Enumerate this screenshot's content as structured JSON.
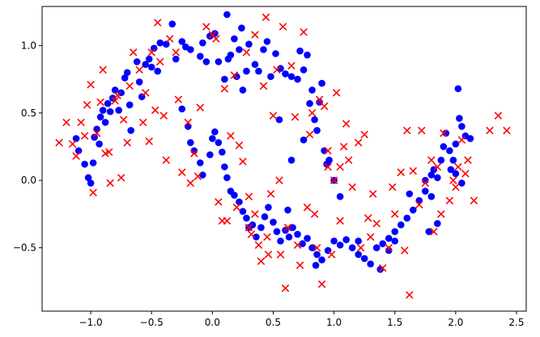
{
  "chart_data": {
    "type": "scatter",
    "title": "",
    "xlabel": "",
    "ylabel": "",
    "xlim": [
      -1.4,
      2.58
    ],
    "ylim": [
      -0.97,
      1.29
    ],
    "xticks": [
      -1.0,
      -0.5,
      0.0,
      0.5,
      1.0,
      1.5,
      2.0,
      2.5
    ],
    "xtick_labels": [
      "−1.0",
      "−0.5",
      "0.0",
      "0.5",
      "1.0",
      "1.5",
      "2.0",
      "2.5"
    ],
    "yticks": [
      -0.5,
      0.0,
      0.5,
      1.0
    ],
    "ytick_labels": [
      "−0.5",
      "0.0",
      "0.5",
      "1.0"
    ],
    "grid": false,
    "legend": "none",
    "series": [
      {
        "marker": "circle",
        "color": "#0000ff",
        "points": [
          [
            -1.12,
            0.31
          ],
          [
            -1.1,
            0.22
          ],
          [
            -1.05,
            0.12
          ],
          [
            -1.02,
            0.02
          ],
          [
            -1.0,
            -0.02
          ],
          [
            -0.98,
            0.13
          ],
          [
            -0.97,
            0.32
          ],
          [
            -0.95,
            0.38
          ],
          [
            -0.93,
            0.27
          ],
          [
            -0.92,
            0.47
          ],
          [
            -0.9,
            0.52
          ],
          [
            -0.88,
            0.43
          ],
          [
            -0.86,
            0.57
          ],
          [
            -0.84,
            0.51
          ],
          [
            -0.82,
            0.61
          ],
          [
            -0.8,
            0.67
          ],
          [
            -0.77,
            0.52
          ],
          [
            -0.75,
            0.65
          ],
          [
            -0.72,
            0.76
          ],
          [
            -0.7,
            0.8
          ],
          [
            -0.68,
            0.56
          ],
          [
            -0.67,
            0.37
          ],
          [
            -0.62,
            0.88
          ],
          [
            -0.6,
            0.73
          ],
          [
            -0.58,
            0.62
          ],
          [
            -0.55,
            0.86
          ],
          [
            -0.52,
            0.9
          ],
          [
            -0.5,
            0.84
          ],
          [
            -0.48,
            0.98
          ],
          [
            -0.45,
            0.81
          ],
          [
            -0.43,
            1.02
          ],
          [
            -0.38,
            1.01
          ],
          [
            -0.33,
            1.16
          ],
          [
            -0.3,
            0.9
          ],
          [
            -0.25,
            1.03
          ],
          [
            -0.22,
            0.99
          ],
          [
            -0.18,
            0.97
          ],
          [
            -0.1,
            0.92
          ],
          [
            -0.08,
            1.02
          ],
          [
            -0.05,
            0.88
          ],
          [
            -0.02,
            1.07
          ],
          [
            0.02,
            1.09
          ],
          [
            0.05,
            0.88
          ],
          [
            0.1,
            0.75
          ],
          [
            0.12,
            1.23
          ],
          [
            0.13,
            0.9
          ],
          [
            0.15,
            0.93
          ],
          [
            0.18,
            1.05
          ],
          [
            0.2,
            0.77
          ],
          [
            0.22,
            0.97
          ],
          [
            0.24,
            1.13
          ],
          [
            0.25,
            0.67
          ],
          [
            0.28,
            0.81
          ],
          [
            0.3,
            1.01
          ],
          [
            0.35,
            0.86
          ],
          [
            0.38,
            0.81
          ],
          [
            0.42,
            0.97
          ],
          [
            0.45,
            1.03
          ],
          [
            0.48,
            0.77
          ],
          [
            0.52,
            0.94
          ],
          [
            0.56,
            0.83
          ],
          [
            0.6,
            0.79
          ],
          [
            0.65,
            0.77
          ],
          [
            0.7,
            0.75
          ],
          [
            0.72,
            0.96
          ],
          [
            0.75,
            0.82
          ],
          [
            0.78,
            0.93
          ],
          [
            0.8,
            0.57
          ],
          [
            0.82,
            0.67
          ],
          [
            0.84,
            0.45
          ],
          [
            0.86,
            0.37
          ],
          [
            0.88,
            0.58
          ],
          [
            0.9,
            0.72
          ],
          [
            0.92,
            0.22
          ],
          [
            0.94,
            0.12
          ],
          [
            0.96,
            0.15
          ],
          [
            1.0,
            0.0
          ],
          [
            1.05,
            -0.12
          ],
          [
            -0.25,
            0.53
          ],
          [
            -0.2,
            0.4
          ],
          [
            -0.18,
            0.28
          ],
          [
            -0.15,
            0.22
          ],
          [
            -0.1,
            0.13
          ],
          [
            -0.08,
            0.04
          ],
          [
            -0.02,
            0.19
          ],
          [
            0.0,
            0.31
          ],
          [
            0.02,
            0.36
          ],
          [
            0.05,
            0.28
          ],
          [
            0.08,
            0.21
          ],
          [
            0.1,
            0.1
          ],
          [
            0.12,
            0.02
          ],
          [
            0.15,
            -0.08
          ],
          [
            0.18,
            -0.11
          ],
          [
            0.22,
            -0.16
          ],
          [
            0.25,
            -0.23
          ],
          [
            0.28,
            -0.28
          ],
          [
            0.3,
            -0.35
          ],
          [
            0.33,
            -0.33
          ],
          [
            0.36,
            -0.42
          ],
          [
            0.4,
            -0.35
          ],
          [
            0.43,
            -0.27
          ],
          [
            0.46,
            -0.2
          ],
          [
            0.5,
            -0.31
          ],
          [
            0.53,
            -0.38
          ],
          [
            0.56,
            -0.45
          ],
          [
            0.6,
            -0.37
          ],
          [
            0.63,
            -0.42
          ],
          [
            0.66,
            -0.35
          ],
          [
            0.7,
            -0.4
          ],
          [
            0.74,
            -0.47
          ],
          [
            0.78,
            -0.43
          ],
          [
            0.82,
            -0.5
          ],
          [
            0.86,
            -0.55
          ],
          [
            0.9,
            -0.59
          ],
          [
            0.95,
            -0.52
          ],
          [
            1.0,
            -0.45
          ],
          [
            1.05,
            -0.48
          ],
          [
            1.1,
            -0.44
          ],
          [
            1.15,
            -0.5
          ],
          [
            1.2,
            -0.55
          ],
          [
            1.25,
            -0.58
          ],
          [
            1.3,
            -0.62
          ],
          [
            1.35,
            -0.5
          ],
          [
            1.4,
            -0.47
          ],
          [
            1.45,
            -0.43
          ],
          [
            1.5,
            -0.38
          ],
          [
            1.55,
            -0.33
          ],
          [
            1.6,
            -0.28
          ],
          [
            1.62,
            -0.1
          ],
          [
            1.65,
            -0.22
          ],
          [
            1.7,
            -0.15
          ],
          [
            1.75,
            -0.08
          ],
          [
            1.78,
            -0.38
          ],
          [
            1.8,
            0.04
          ],
          [
            1.82,
            0.08
          ],
          [
            1.85,
            0.02
          ],
          [
            1.88,
            0.15
          ],
          [
            1.9,
            0.25
          ],
          [
            1.92,
            0.35
          ],
          [
            1.95,
            0.22
          ],
          [
            1.98,
            0.15
          ],
          [
            2.0,
            0.27
          ],
          [
            2.02,
            0.68
          ],
          [
            2.03,
            0.46
          ],
          [
            2.05,
            0.4
          ],
          [
            2.08,
            0.33
          ],
          [
            2.12,
            0.31
          ],
          [
            1.96,
            0.08
          ],
          [
            2.0,
            0.05
          ],
          [
            2.05,
            -0.02
          ],
          [
            1.85,
            -0.32
          ],
          [
            1.8,
            -0.12
          ],
          [
            1.75,
            0.0
          ],
          [
            1.5,
            -0.45
          ],
          [
            1.45,
            -0.52
          ],
          [
            1.38,
            -0.66
          ],
          [
            1.2,
            -0.45
          ],
          [
            0.85,
            -0.63
          ],
          [
            0.62,
            -0.22
          ],
          [
            0.65,
            0.15
          ],
          [
            0.75,
            0.3
          ],
          [
            0.55,
            0.45
          ]
        ]
      },
      {
        "marker": "x",
        "color": "#ff0000",
        "points": [
          [
            -1.26,
            0.28
          ],
          [
            -1.2,
            0.43
          ],
          [
            -1.15,
            0.27
          ],
          [
            -1.12,
            0.18
          ],
          [
            -1.08,
            0.43
          ],
          [
            -1.05,
            0.33
          ],
          [
            -1.03,
            0.56
          ],
          [
            -1.0,
            0.71
          ],
          [
            -0.98,
            -0.09
          ],
          [
            -0.95,
            0.35
          ],
          [
            -0.92,
            0.58
          ],
          [
            -0.9,
            0.82
          ],
          [
            -0.88,
            0.2
          ],
          [
            -0.85,
            0.21
          ],
          [
            -0.84,
            -0.02
          ],
          [
            -0.8,
            0.59
          ],
          [
            -0.78,
            0.63
          ],
          [
            -0.75,
            0.02
          ],
          [
            -0.73,
            0.45
          ],
          [
            -0.7,
            0.28
          ],
          [
            -0.68,
            0.7
          ],
          [
            -0.65,
            0.95
          ],
          [
            -0.6,
            0.82
          ],
          [
            -0.57,
            0.43
          ],
          [
            -0.55,
            0.65
          ],
          [
            -0.52,
            0.29
          ],
          [
            -0.5,
            0.95
          ],
          [
            -0.47,
            0.52
          ],
          [
            -0.45,
            1.17
          ],
          [
            -0.43,
            0.88
          ],
          [
            -0.4,
            0.48
          ],
          [
            -0.38,
            0.15
          ],
          [
            -0.35,
            1.05
          ],
          [
            -0.3,
            0.95
          ],
          [
            -0.28,
            0.6
          ],
          [
            -0.25,
            0.06
          ],
          [
            -0.2,
            0.43
          ],
          [
            -0.18,
            -0.02
          ],
          [
            -0.15,
            0.2
          ],
          [
            -0.12,
            0.03
          ],
          [
            -0.1,
            0.54
          ],
          [
            -0.05,
            1.14
          ],
          [
            0.0,
            1.08
          ],
          [
            0.03,
            1.05
          ],
          [
            0.05,
            -0.16
          ],
          [
            0.08,
            -0.3
          ],
          [
            0.1,
            0.68
          ],
          [
            0.12,
            -0.3
          ],
          [
            0.15,
            0.33
          ],
          [
            0.18,
            0.78
          ],
          [
            0.2,
            -0.2
          ],
          [
            0.22,
            0.26
          ],
          [
            0.25,
            0.14
          ],
          [
            0.28,
            0.95
          ],
          [
            0.3,
            -0.35
          ],
          [
            0.32,
            -0.4
          ],
          [
            0.35,
            1.08
          ],
          [
            0.38,
            -0.48
          ],
          [
            0.4,
            -0.6
          ],
          [
            0.42,
            0.7
          ],
          [
            0.44,
            1.21
          ],
          [
            0.46,
            -0.55
          ],
          [
            0.48,
            -0.1
          ],
          [
            0.5,
            0.48
          ],
          [
            0.53,
            0.82
          ],
          [
            0.56,
            -0.55
          ],
          [
            0.58,
            1.14
          ],
          [
            0.6,
            -0.8
          ],
          [
            0.62,
            -0.35
          ],
          [
            0.65,
            0.85
          ],
          [
            0.68,
            0.47
          ],
          [
            0.7,
            -0.48
          ],
          [
            0.72,
            -0.63
          ],
          [
            0.75,
            1.1
          ],
          [
            0.78,
            -0.2
          ],
          [
            0.8,
            0.34
          ],
          [
            0.82,
            0.5
          ],
          [
            0.84,
            -0.25
          ],
          [
            0.86,
            -0.5
          ],
          [
            0.88,
            0.6
          ],
          [
            0.9,
            -0.77
          ],
          [
            0.92,
            0.55
          ],
          [
            0.95,
            0.22
          ],
          [
            0.98,
            -0.55
          ],
          [
            1.0,
            0.0
          ],
          [
            1.02,
            0.65
          ],
          [
            1.05,
            -0.3
          ],
          [
            1.08,
            0.25
          ],
          [
            1.1,
            0.42
          ],
          [
            1.12,
            0.15
          ],
          [
            1.15,
            -0.05
          ],
          [
            1.2,
            0.28
          ],
          [
            1.22,
            -0.5
          ],
          [
            1.25,
            0.34
          ],
          [
            1.28,
            -0.28
          ],
          [
            1.3,
            -0.42
          ],
          [
            1.32,
            -0.1
          ],
          [
            1.35,
            -0.32
          ],
          [
            1.4,
            -0.65
          ],
          [
            1.45,
            -0.5
          ],
          [
            1.48,
            -0.05
          ],
          [
            1.5,
            -0.25
          ],
          [
            1.55,
            0.06
          ],
          [
            1.58,
            -0.52
          ],
          [
            1.6,
            0.37
          ],
          [
            1.62,
            -0.85
          ],
          [
            1.65,
            0.07
          ],
          [
            1.7,
            -0.18
          ],
          [
            1.72,
            0.37
          ],
          [
            1.75,
            -0.02
          ],
          [
            1.8,
            0.15
          ],
          [
            1.82,
            -0.38
          ],
          [
            1.85,
            0.1
          ],
          [
            1.88,
            -0.25
          ],
          [
            1.9,
            0.35
          ],
          [
            1.95,
            -0.15
          ],
          [
            1.98,
            0.0
          ],
          [
            2.0,
            -0.05
          ],
          [
            2.02,
            0.1
          ],
          [
            2.05,
            0.3
          ],
          [
            2.08,
            0.05
          ],
          [
            2.1,
            0.15
          ],
          [
            2.15,
            -0.15
          ],
          [
            2.28,
            0.37
          ],
          [
            2.35,
            0.48
          ],
          [
            2.42,
            0.37
          ],
          [
            0.95,
            0.1
          ],
          [
            1.05,
            0.1
          ],
          [
            0.35,
            -0.25
          ],
          [
            0.45,
            -0.42
          ],
          [
            0.3,
            -0.12
          ],
          [
            0.55,
            0.0
          ]
        ]
      }
    ]
  }
}
